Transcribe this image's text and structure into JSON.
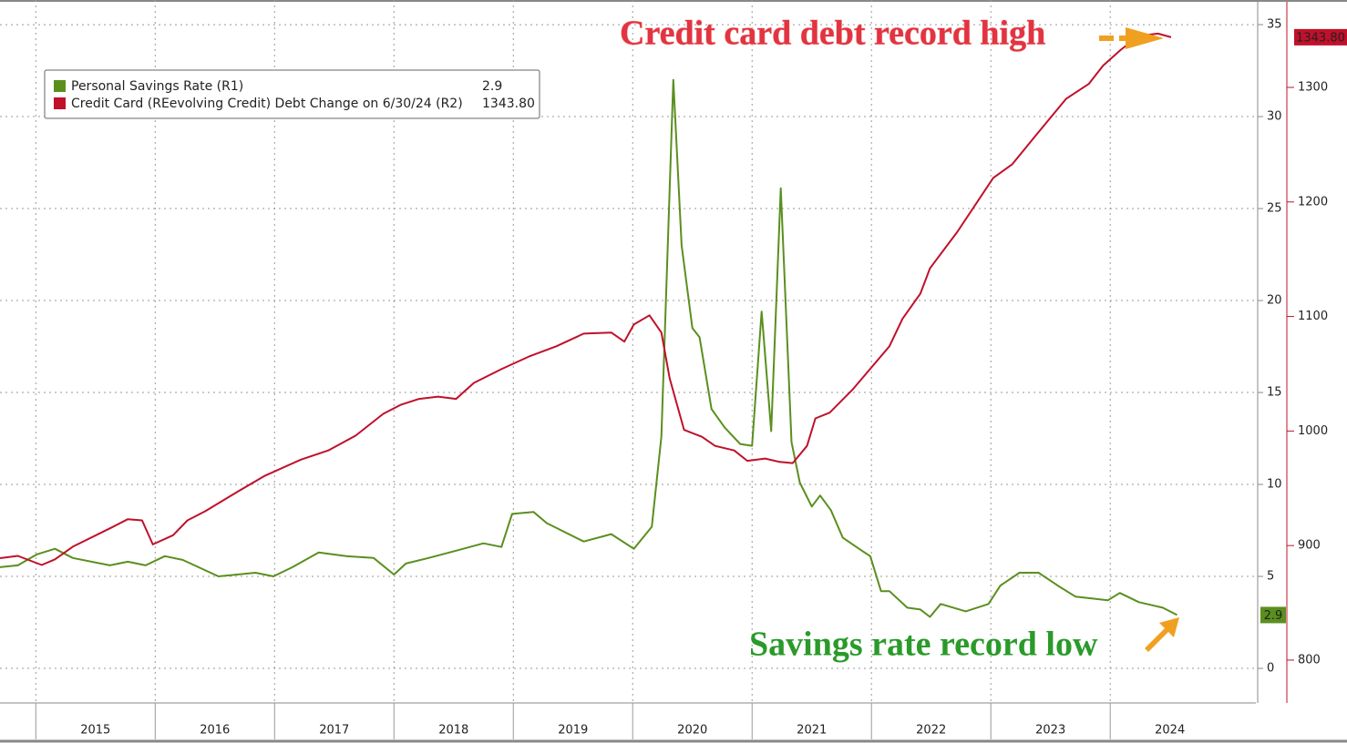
{
  "chart_data": {
    "type": "line",
    "annotations": [
      "Credit card debt record high",
      "Savings rate record low"
    ],
    "xlim": [
      2014.7,
      2025.22
    ],
    "xticks": [
      2015,
      2016,
      2017,
      2018,
      2019,
      2020,
      2021,
      2022,
      2023,
      2024
    ],
    "ylim": [
      -1.88,
      36.34
    ],
    "yticks": [
      0,
      5,
      10,
      15,
      20,
      25,
      30,
      35
    ],
    "y2lim": [
      762.6,
      1376.3
    ],
    "y2ticks": [
      800,
      900,
      1000,
      1100,
      1200,
      1300
    ],
    "grid": true,
    "legend": "upper left",
    "series": [
      {
        "name": "Personal Savings Rate (R1)",
        "color": "#5a8f1e",
        "axis": "y",
        "x": [
          2014.7,
          2014.85,
          2015.01,
          2015.16,
          2015.31,
          2015.62,
          2015.77,
          2015.92,
          2016.08,
          2016.23,
          2016.53,
          2016.84,
          2016.99,
          2017.15,
          2017.37,
          2017.6,
          2017.83,
          2018.0,
          2018.1,
          2018.29,
          2018.52,
          2018.75,
          2018.9,
          2018.99,
          2019.17,
          2019.28,
          2019.59,
          2019.82,
          2020.01,
          2020.16,
          2020.24,
          2020.34,
          2020.41,
          2020.5,
          2020.56,
          2020.66,
          2020.77,
          2020.9,
          2021.0,
          2021.08,
          2021.16,
          2021.24,
          2021.33,
          2021.4,
          2021.5,
          2021.57,
          2021.66,
          2021.76,
          2021.92,
          2021.99,
          2022.08,
          2022.15,
          2022.3,
          2022.41,
          2022.49,
          2022.58,
          2022.79,
          2022.98,
          2023.08,
          2023.24,
          2023.4,
          2023.56,
          2023.71,
          2023.98,
          2024.08,
          2024.24,
          2024.44,
          2024.56
        ],
        "values": [
          5.5,
          5.6,
          6.2,
          6.5,
          6.0,
          5.6,
          5.8,
          5.6,
          6.1,
          5.9,
          5.0,
          5.2,
          5.0,
          5.5,
          6.3,
          6.1,
          6.0,
          5.1,
          5.7,
          6.0,
          6.4,
          6.8,
          6.6,
          8.4,
          8.5,
          7.9,
          6.9,
          7.3,
          6.5,
          7.7,
          12.6,
          32.0,
          23.0,
          18.5,
          18.0,
          14.1,
          13.1,
          12.2,
          12.1,
          19.4,
          12.9,
          26.1,
          12.3,
          10.1,
          8.8,
          9.4,
          8.6,
          7.1,
          6.4,
          6.1,
          4.2,
          4.2,
          3.3,
          3.2,
          2.8,
          3.5,
          3.1,
          3.5,
          4.5,
          5.2,
          5.2,
          4.5,
          3.9,
          3.7,
          4.1,
          3.6,
          3.3,
          2.9
        ]
      },
      {
        "name": "Credit Card (REevolving Credit) Debt Change on 6/30/24 (R2)",
        "color": "#c0102a",
        "axis": "y2",
        "last_value_label": "1343.80",
        "x": [
          2014.7,
          2014.85,
          2015.05,
          2015.16,
          2015.31,
          2015.62,
          2015.77,
          2015.89,
          2015.98,
          2016.15,
          2016.27,
          2016.42,
          2016.69,
          2016.92,
          2017.22,
          2017.45,
          2017.68,
          2017.91,
          2018.06,
          2018.21,
          2018.37,
          2018.52,
          2018.67,
          2018.9,
          2019.13,
          2019.36,
          2019.59,
          2019.82,
          2019.93,
          2020.01,
          2020.14,
          2020.24,
          2020.31,
          2020.43,
          2020.58,
          2020.69,
          2020.85,
          2020.96,
          2021.11,
          2021.23,
          2021.34,
          2021.46,
          2021.53,
          2021.65,
          2021.84,
          2022.15,
          2022.26,
          2022.41,
          2022.49,
          2022.72,
          2023.02,
          2023.18,
          2023.4,
          2023.63,
          2023.82,
          2023.94,
          2024.09,
          2024.24,
          2024.4,
          2024.51
        ],
        "values": [
          889,
          891,
          883,
          888,
          899,
          915,
          923,
          922,
          901,
          909,
          922,
          930,
          947,
          961,
          975,
          983,
          996,
          1015,
          1023,
          1028,
          1030,
          1028,
          1042,
          1054,
          1065,
          1074,
          1085,
          1086,
          1078,
          1093,
          1101,
          1086,
          1046,
          1001,
          995,
          987,
          983,
          974,
          976,
          973,
          972,
          987,
          1011,
          1016,
          1036,
          1074,
          1098,
          1120,
          1142,
          1174,
          1221,
          1233,
          1261,
          1290,
          1303,
          1319,
          1333,
          1345,
          1347,
          1343.8
        ]
      }
    ]
  }
}
